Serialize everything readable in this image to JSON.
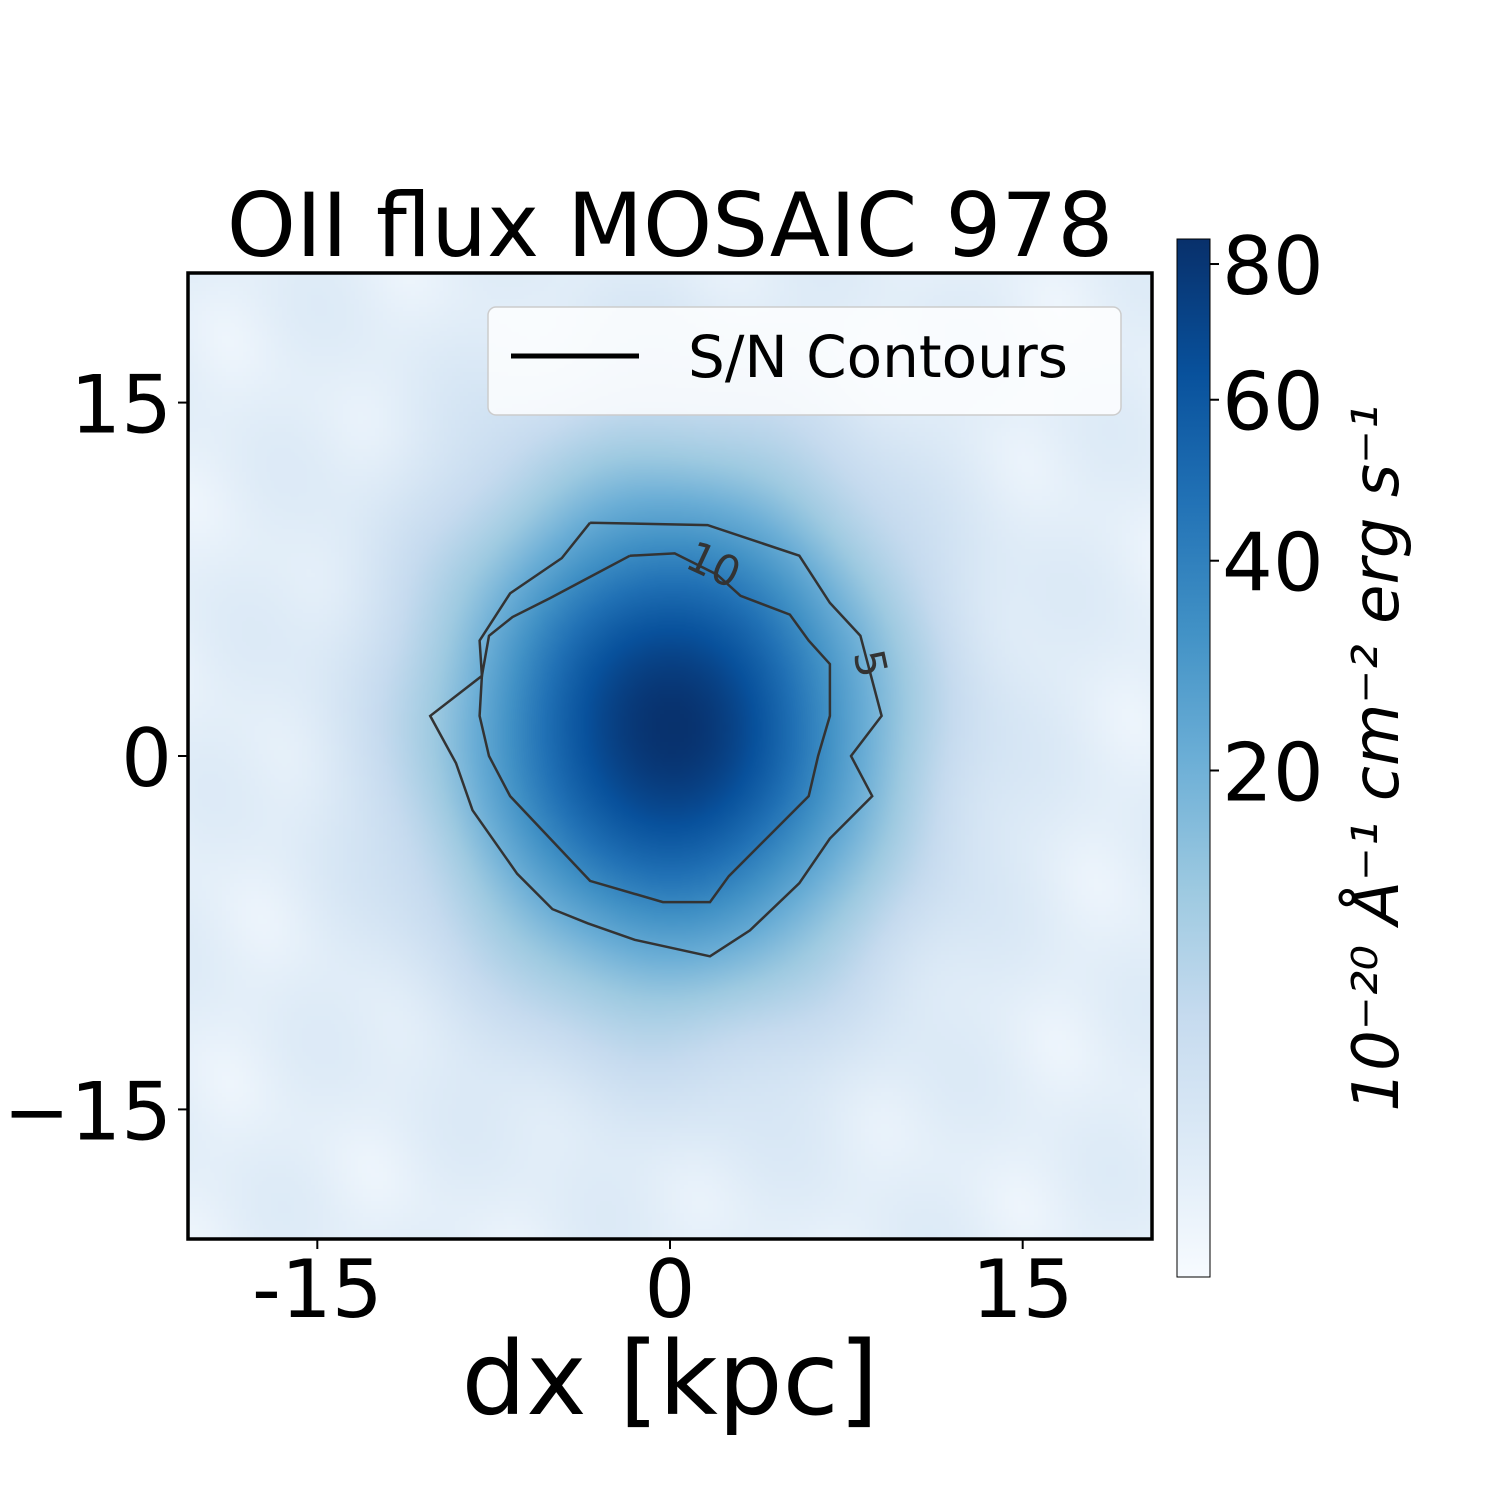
{
  "chart_data": {
    "type": "heatmap",
    "title": "OII flux MOSAIC 978",
    "xlabel": "dx [kpc]",
    "ylabel": "",
    "xlim": [
      -20.5,
      20.5
    ],
    "ylim": [
      -20.5,
      20.5
    ],
    "x_ticks": [
      -15,
      0,
      15
    ],
    "x_tick_labels": [
      "-15",
      "0",
      "15"
    ],
    "y_ticks": [
      -15,
      0,
      15
    ],
    "y_tick_labels": [
      "−15",
      "0",
      "15"
    ],
    "colormap": "Blues",
    "colorbar": {
      "label": "10⁻²⁰ Å⁻¹ cm⁻² erg s⁻¹",
      "scale": "sqrt",
      "vmin": 0,
      "vmax": 84,
      "ticks": [
        20,
        40,
        60,
        80
      ],
      "tick_labels": [
        "20",
        "40",
        "60",
        "80"
      ]
    },
    "peak": {
      "x": 0,
      "y": 1.8,
      "value": 82
    },
    "legend": {
      "label": "S/N Contours",
      "position": "top-right"
    },
    "contours": [
      {
        "level": 5,
        "label": "5",
        "points": [
          [
            -3.4,
            9.9
          ],
          [
            1.6,
            9.8
          ],
          [
            5.5,
            8.5
          ],
          [
            6.8,
            6.5
          ],
          [
            8.1,
            5.1
          ],
          [
            9.0,
            1.7
          ],
          [
            7.7,
            0.0
          ],
          [
            8.6,
            -1.7
          ],
          [
            6.8,
            -3.5
          ],
          [
            5.5,
            -5.4
          ],
          [
            3.4,
            -7.4
          ],
          [
            1.7,
            -8.5
          ],
          [
            -1.5,
            -7.8
          ],
          [
            -3.5,
            -7.1
          ],
          [
            -5.0,
            -6.5
          ],
          [
            -6.5,
            -5.0
          ],
          [
            -8.4,
            -2.3
          ],
          [
            -9.1,
            -0.3
          ],
          [
            -10.2,
            1.7
          ],
          [
            -8.0,
            3.4
          ],
          [
            -8.1,
            4.9
          ],
          [
            -6.8,
            6.9
          ],
          [
            -4.6,
            8.4
          ],
          [
            -3.4,
            9.9
          ]
        ]
      },
      {
        "level": 10,
        "label": "10",
        "points": [
          [
            -1.7,
            8.5
          ],
          [
            0.2,
            8.6
          ],
          [
            2.0,
            7.7
          ],
          [
            3.0,
            6.8
          ],
          [
            5.1,
            6.0
          ],
          [
            5.9,
            4.9
          ],
          [
            6.8,
            3.9
          ],
          [
            6.8,
            1.7
          ],
          [
            6.3,
            0.0
          ],
          [
            5.9,
            -1.7
          ],
          [
            4.2,
            -3.4
          ],
          [
            2.5,
            -5.1
          ],
          [
            1.7,
            -6.2
          ],
          [
            -0.3,
            -6.2
          ],
          [
            -3.4,
            -5.3
          ],
          [
            -5.1,
            -3.5
          ],
          [
            -6.8,
            -1.7
          ],
          [
            -7.7,
            0.0
          ],
          [
            -8.1,
            1.7
          ],
          [
            -8.0,
            3.4
          ],
          [
            -7.7,
            5.1
          ],
          [
            -6.7,
            5.9
          ],
          [
            -5.1,
            6.7
          ],
          [
            -3.4,
            7.6
          ],
          [
            -1.7,
            8.5
          ]
        ]
      }
    ],
    "blob": {
      "center_x": 0,
      "center_y": 1.2,
      "sigma_x": 5.0,
      "sigma_y": 5.8,
      "amplitude": 82
    }
  }
}
